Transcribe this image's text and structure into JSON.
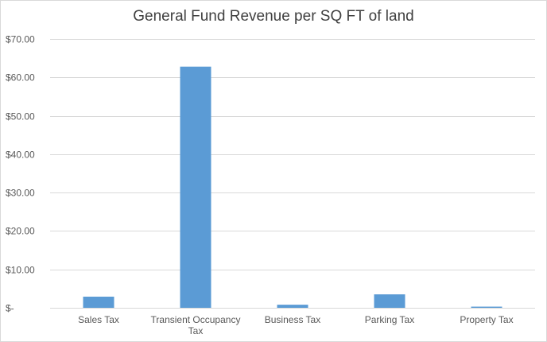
{
  "chart_data": {
    "type": "bar",
    "title": "General Fund Revenue per SQ FT of land",
    "categories": [
      "Sales Tax",
      "Transient Occupancy Tax",
      "Business Tax",
      "Parking Tax",
      "Property Tax"
    ],
    "category_lines": [
      [
        "Sales Tax"
      ],
      [
        "Transient Occupancy",
        "Tax"
      ],
      [
        "Business Tax"
      ],
      [
        "Parking Tax"
      ],
      [
        "Property Tax"
      ]
    ],
    "values": [
      2.9,
      62.8,
      0.8,
      3.5,
      0.3
    ],
    "ylim": [
      0,
      70
    ],
    "yticks": [
      0,
      10,
      20,
      30,
      40,
      50,
      60,
      70
    ],
    "ytick_labels": [
      "$-",
      "$10.00",
      "$20.00",
      "$30.00",
      "$40.00",
      "$50.00",
      "$60.00",
      "$70.00"
    ],
    "xlabel": "",
    "ylabel": "",
    "grid": true,
    "legend": "none",
    "bar_color": "#5b9bd5",
    "grid_color": "#d9d9d9"
  }
}
